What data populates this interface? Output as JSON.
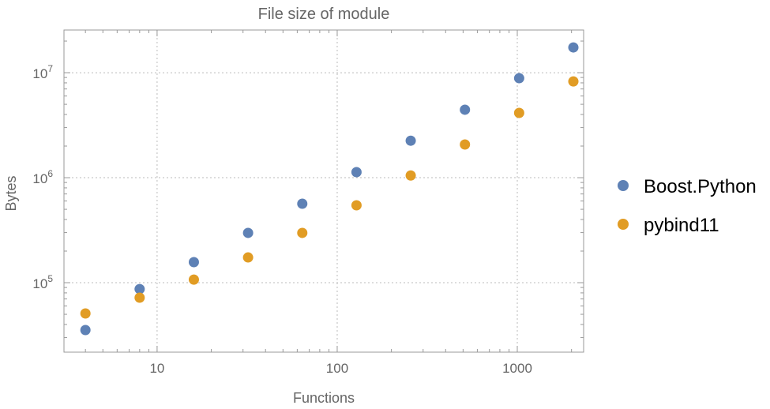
{
  "chart_data": {
    "type": "scatter",
    "title": "File size of module",
    "xlabel": "Functions",
    "ylabel": "Bytes",
    "xscale": "log",
    "yscale": "log",
    "xlim": [
      3.04,
      2335
    ],
    "ylim": [
      21800,
      25500000
    ],
    "grid": true,
    "legend_position": "right",
    "x_ticks": [
      {
        "value": 10,
        "label": "10"
      },
      {
        "value": 100,
        "label": "100"
      },
      {
        "value": 1000,
        "label": "1000"
      }
    ],
    "y_ticks": [
      {
        "value": 100000,
        "base": "10",
        "exp": "5"
      },
      {
        "value": 1000000,
        "base": "10",
        "exp": "6"
      },
      {
        "value": 10000000,
        "base": "10",
        "exp": "7"
      }
    ],
    "x": [
      4,
      8,
      16,
      32,
      64,
      128,
      256,
      512,
      1024,
      2048
    ],
    "series": [
      {
        "name": "Boost.Python",
        "color": "#5E81B5",
        "values": [
          35400,
          87000,
          157000,
          298000,
          565000,
          1130000,
          2250000,
          4440000,
          8860000,
          17400000
        ]
      },
      {
        "name": "pybind11",
        "color": "#E19C24",
        "values": [
          50900,
          72000,
          107000,
          174000,
          298000,
          546000,
          1050000,
          2070000,
          4140000,
          8260000
        ]
      }
    ]
  }
}
